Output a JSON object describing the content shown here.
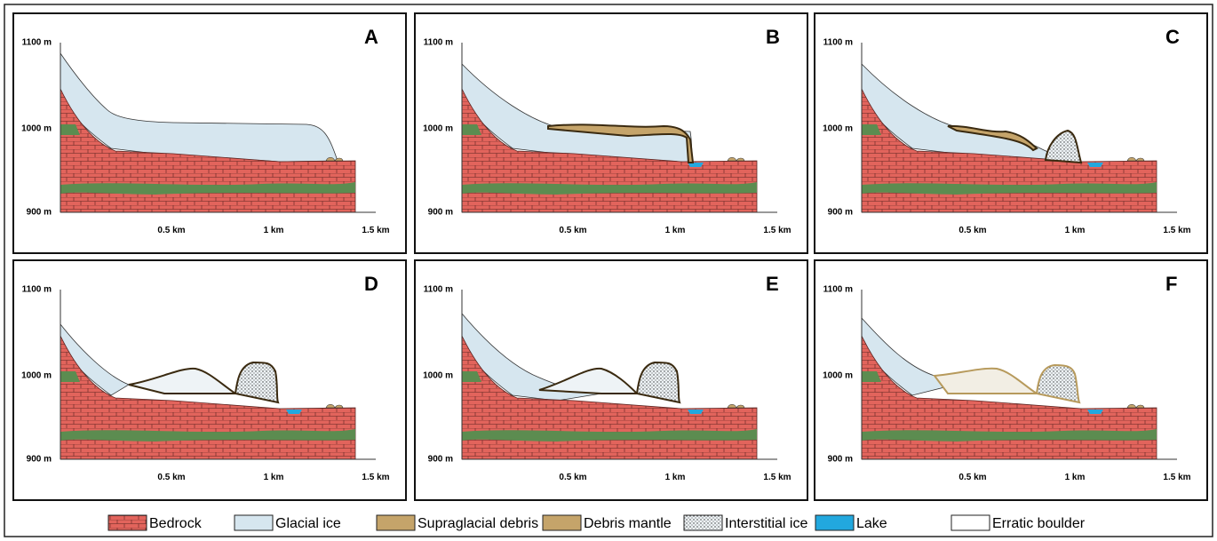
{
  "panels": [
    {
      "label": "A"
    },
    {
      "label": "B"
    },
    {
      "label": "C"
    },
    {
      "label": "D"
    },
    {
      "label": "E"
    },
    {
      "label": "F"
    }
  ],
  "y_labels": [
    "1100 m",
    "1000 m",
    "900 m"
  ],
  "x_labels": [
    "0.5 km",
    "1 km",
    "1.5 km"
  ],
  "legend": [
    "Bedrock",
    "Glacial ice",
    "Supraglacial debris",
    "Debris mantle",
    "Interstitial ice",
    "Lake",
    "Erratic boulder"
  ]
}
